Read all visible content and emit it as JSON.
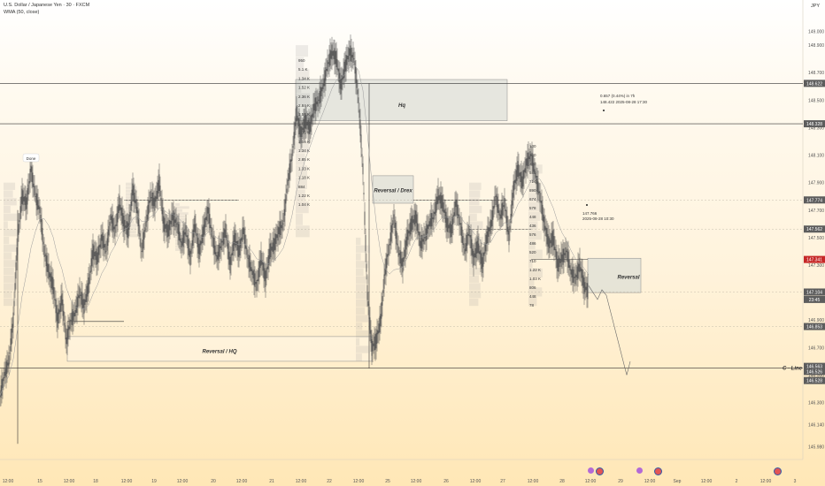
{
  "header": {
    "symbol_line": "U.S. Dollar / Japanese Yen · 30 · FXCM",
    "indicator_line": "WMA (50, close)",
    "currency": "JPY"
  },
  "chart_data": {
    "type": "line",
    "title": "U.S. Dollar / Japanese Yen · 30 · FXCM",
    "ylim": [
      145.95,
      149.1
    ],
    "y_ticks": [
      "149.000",
      "148.900",
      "148.700",
      "148.500",
      "148.300",
      "148.100",
      "147.900",
      "147.700",
      "147.500",
      "147.300",
      "147.100",
      "146.900",
      "146.700",
      "146.500",
      "146.300",
      "146.140",
      "145.980"
    ],
    "y_tick_values": [
      149.0,
      148.9,
      148.7,
      148.5,
      148.3,
      148.1,
      147.9,
      147.7,
      147.5,
      147.3,
      147.1,
      146.9,
      146.7,
      146.5,
      146.3,
      146.14,
      145.98
    ],
    "x_ticks": [
      "12:00",
      "15",
      "12:00",
      "18",
      "12:00",
      "19",
      "12:00",
      "20",
      "12:00",
      "21",
      "12:00",
      "22",
      "12:00",
      "25",
      "12:00",
      "26",
      "12:00",
      "27",
      "12:00",
      "28",
      "12:00",
      "29",
      "12:00",
      "Sep",
      "12:00",
      "2",
      "12:00",
      "3"
    ],
    "x_tick_positions": [
      9,
      45,
      78,
      108,
      143,
      174,
      206,
      241,
      273,
      307,
      340,
      372,
      405,
      438,
      470,
      504,
      537,
      568,
      602,
      635,
      667,
      701,
      734,
      765,
      798,
      832,
      865,
      898
    ],
    "series": [
      {
        "name": "",
        "x": [
          0,
          5,
          10,
          15,
          20,
          25,
          30,
          35,
          40,
          45,
          50,
          55,
          60,
          65,
          70,
          75,
          80,
          85,
          90,
          95,
          100,
          105,
          110,
          115,
          120,
          125,
          130,
          135,
          140,
          145,
          150,
          155,
          160,
          165,
          170,
          175,
          180,
          185,
          190,
          195,
          200,
          205,
          210,
          215,
          220,
          225,
          230,
          235,
          240,
          245,
          250,
          255,
          260,
          265,
          270,
          275,
          280,
          285,
          290,
          295,
          300,
          305,
          310,
          315,
          320,
          325,
          330,
          335,
          340,
          345,
          350,
          355,
          360,
          365,
          370,
          375,
          380,
          385,
          390,
          395,
          400,
          405,
          410,
          415,
          420,
          425,
          430,
          435,
          440,
          445,
          450,
          455,
          460,
          465,
          470,
          475,
          480,
          485,
          490,
          495,
          500,
          505,
          510,
          515,
          520,
          525,
          530,
          535,
          540,
          545,
          550,
          555,
          560,
          565,
          570,
          575,
          580,
          585,
          590,
          595,
          600,
          605,
          610,
          615,
          620,
          625,
          630,
          635,
          640,
          645,
          650,
          655,
          660,
          665
        ],
        "values": [
          146.35,
          146.5,
          146.6,
          146.9,
          147.5,
          147.8,
          147.75,
          148.0,
          147.8,
          147.7,
          147.4,
          147.25,
          147.15,
          146.9,
          147.05,
          146.75,
          146.9,
          146.95,
          147.1,
          147.0,
          147.15,
          147.4,
          147.35,
          147.5,
          147.4,
          147.65,
          147.55,
          147.75,
          147.6,
          147.55,
          147.85,
          147.7,
          147.4,
          147.6,
          147.8,
          147.75,
          147.9,
          147.6,
          147.55,
          147.65,
          147.6,
          147.45,
          147.55,
          147.35,
          147.6,
          147.4,
          147.55,
          147.7,
          147.5,
          147.35,
          147.45,
          147.55,
          147.3,
          147.5,
          147.4,
          147.55,
          147.35,
          147.25,
          147.15,
          147.35,
          147.2,
          147.4,
          147.45,
          147.55,
          147.6,
          147.9,
          148.1,
          148.4,
          148.25,
          148.35,
          148.3,
          148.45,
          148.5,
          148.6,
          148.75,
          148.85,
          148.8,
          148.6,
          148.75,
          148.85,
          148.8,
          148.5,
          148.0,
          147.1,
          146.7,
          146.75,
          146.9,
          147.25,
          147.45,
          147.65,
          147.4,
          147.3,
          147.5,
          147.6,
          147.65,
          147.45,
          147.5,
          147.6,
          147.65,
          147.8,
          147.75,
          147.6,
          147.55,
          147.75,
          147.6,
          147.4,
          147.55,
          147.35,
          147.45,
          147.3,
          147.5,
          147.6,
          147.8,
          147.65,
          147.75,
          147.5,
          147.85,
          148.0,
          147.9,
          148.05,
          148.1,
          147.95,
          147.8,
          147.6,
          147.45,
          147.5,
          147.3,
          147.35,
          147.4,
          147.25,
          147.2,
          147.3,
          147.15,
          147.1
        ]
      }
    ]
  },
  "price_tags": [
    {
      "value": "148.622",
      "color": "#5d5d5d",
      "price": 148.622
    },
    {
      "value": "148.328",
      "color": "#5d5d5d",
      "price": 148.328
    },
    {
      "value": "147.774",
      "color": "#5d5d5d",
      "price": 147.774
    },
    {
      "value": "147.562",
      "color": "#5d5d5d",
      "price": 147.562
    },
    {
      "value": "147.341",
      "color": "#c62828",
      "price": 147.341
    },
    {
      "value": "147.104",
      "color": "#5d5d5d",
      "price": 147.104
    },
    {
      "value": "23:45",
      "color": "#5d5d5d",
      "price": 147.05
    },
    {
      "value": "146.853",
      "color": "#5d5d5d",
      "price": 146.853
    },
    {
      "value": "146.563",
      "color": "#5d5d5d",
      "price": 146.563
    },
    {
      "value": "146.526",
      "color": "#5d5d5d",
      "price": 146.526
    },
    {
      "value": "146.528",
      "color": "#5d5d5d",
      "price": 146.46
    }
  ],
  "annotations": {
    "done_label": "Done",
    "hq_label": "Hq",
    "reversal_drex_label": "Reversal / Drex",
    "reversal_hq_label": "Reversal / HQ",
    "reversal_label": "Reversal",
    "c_line_label": "C - Line",
    "measure_top": "0.657 (0.44%) in 7h",
    "measure_sub": "148.422     2025-08-28  17:30",
    "measure_mid": "147.766",
    "measure_mid_sub": "2025-08-28  10:30",
    "volume_profile_labels": [
      "950",
      "5.1 K",
      "1.34 K",
      "1.52 K",
      "2.36 K",
      "2.84 K",
      "1.59 K",
      "1.82 K",
      "1.35 K",
      "1.04 K",
      "1.34 K",
      "2.85 K",
      "1.33 K",
      "1.18 K",
      "884",
      "1.22 K",
      "1.04 K"
    ],
    "volume_profile_labels_2": [
      "130",
      "230",
      "370",
      "580",
      "714",
      "890",
      "674",
      "578",
      "448",
      "436",
      "576",
      "486",
      "520",
      "710",
      "1.22 K",
      "1.03 K",
      "806",
      "448",
      "78"
    ]
  },
  "colors": {
    "candle": "#555555",
    "zone_fill": "#d9dcd6",
    "zone_border": "#8a8a8a",
    "line": "#333333",
    "wma": "#9c9c9c"
  }
}
